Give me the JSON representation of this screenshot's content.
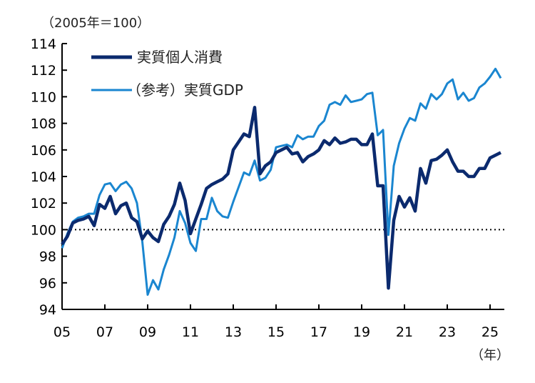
{
  "chart_data": {
    "type": "line",
    "unit_note": "（2005年＝100）",
    "x_unit": "（年）",
    "xlabel": "",
    "ylabel": "",
    "ylim": [
      94,
      114
    ],
    "yticks": [
      94,
      96,
      98,
      100,
      102,
      104,
      106,
      108,
      110,
      112,
      114
    ],
    "xlim": [
      "2005Q1",
      "2025Q3"
    ],
    "xticks": [
      "05",
      "07",
      "09",
      "11",
      "13",
      "15",
      "17",
      "19",
      "21",
      "23",
      "25"
    ],
    "reference_line": {
      "value": 100,
      "style": "dotted",
      "color": "#000000"
    },
    "grid": false,
    "legend_placement": "top-left",
    "x_start": "2005Q1",
    "frequency": "quarterly",
    "series": [
      {
        "name": "実質個人消費",
        "color": "#0b2a6e",
        "values": [
          98.9,
          99.5,
          100.5,
          100.7,
          100.8,
          101.0,
          100.3,
          101.9,
          101.6,
          102.5,
          101.2,
          101.8,
          102.0,
          100.9,
          100.6,
          99.3,
          99.9,
          99.4,
          99.1,
          100.4,
          101.0,
          101.9,
          103.5,
          102.2,
          99.7,
          100.8,
          101.9,
          103.1,
          103.4,
          103.6,
          103.8,
          104.2,
          106.0,
          106.6,
          107.2,
          107.0,
          109.2,
          104.2,
          104.8,
          105.1,
          105.8,
          106.0,
          106.2,
          105.7,
          105.8,
          105.1,
          105.5,
          105.7,
          106.0,
          106.7,
          106.4,
          106.9,
          106.5,
          106.6,
          106.8,
          106.8,
          106.4,
          106.4,
          107.2,
          103.3,
          103.3,
          95.6,
          100.7,
          102.5,
          101.7,
          102.4,
          101.4,
          104.6,
          103.5,
          105.2,
          105.3,
          105.6,
          106.0,
          105.1,
          104.4,
          104.4,
          104.0,
          104.0,
          104.6,
          104.6,
          105.4,
          105.6,
          105.8
        ]
      },
      {
        "name": "（参考）実質GDP",
        "color": "#1a86d0",
        "values": [
          98.6,
          99.7,
          100.6,
          100.9,
          101.0,
          101.2,
          101.2,
          102.6,
          103.4,
          103.5,
          102.9,
          103.4,
          103.6,
          103.1,
          102.0,
          99.1,
          95.1,
          96.2,
          95.5,
          97.0,
          98.1,
          99.4,
          101.4,
          100.5,
          99.0,
          98.4,
          100.8,
          100.8,
          102.4,
          101.4,
          101.0,
          100.9,
          102.1,
          103.2,
          104.3,
          104.1,
          105.2,
          103.7,
          103.9,
          104.5,
          106.2,
          106.3,
          106.4,
          106.2,
          107.1,
          106.8,
          107.0,
          107.0,
          107.8,
          108.2,
          109.4,
          109.6,
          109.4,
          110.1,
          109.6,
          109.7,
          109.8,
          110.2,
          110.3,
          107.1,
          107.5,
          99.6,
          104.8,
          106.5,
          107.6,
          108.4,
          108.2,
          109.5,
          109.1,
          110.2,
          109.8,
          110.2,
          111.0,
          111.3,
          109.8,
          110.3,
          109.7,
          109.9,
          110.7,
          111.0,
          111.5,
          112.1,
          111.4
        ]
      }
    ]
  }
}
